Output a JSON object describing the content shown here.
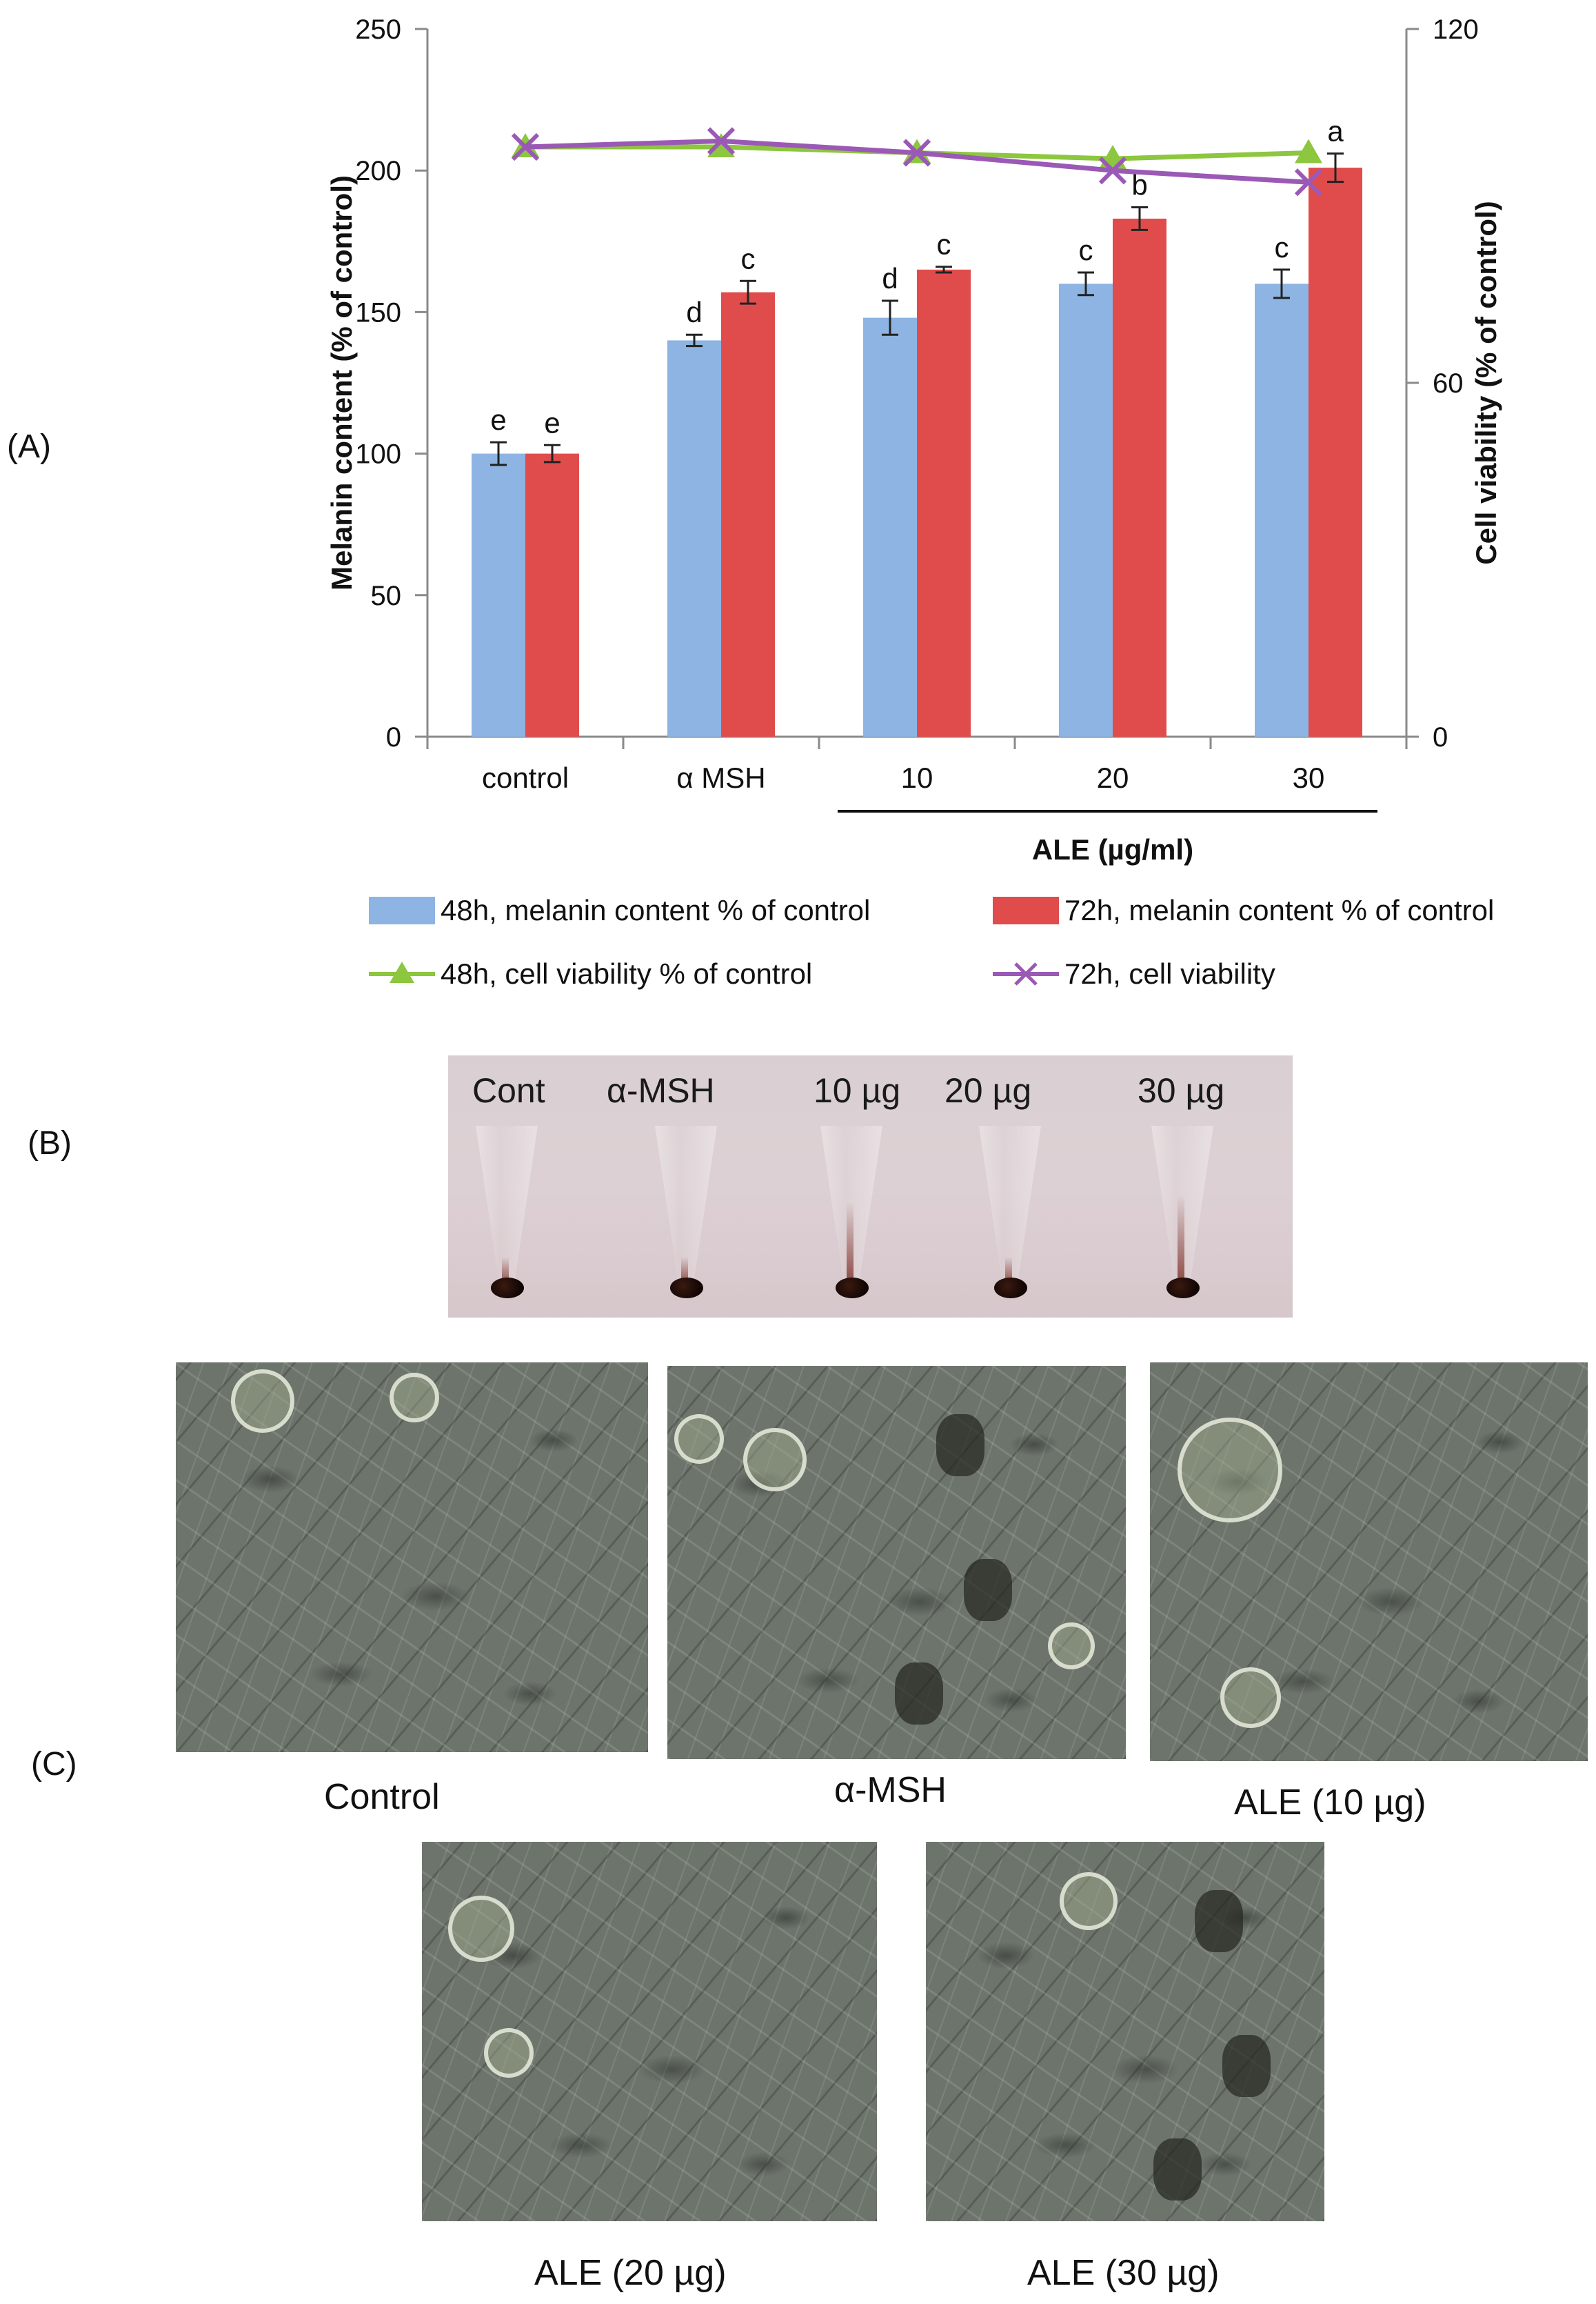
{
  "panels": {
    "a": "(A)",
    "b": "(B)",
    "c": "(C)"
  },
  "chart_data": {
    "type": "bar",
    "categories": [
      "control",
      "α MSH",
      "10",
      "20",
      "30"
    ],
    "group_label": "ALE (µg/ml)",
    "ylabel": "Melanin content (% of control)",
    "y2label": "Cell viability (% of control)",
    "ylim": [
      0,
      250
    ],
    "yticks": [
      0,
      50,
      100,
      150,
      200,
      250
    ],
    "y2lim": [
      0,
      120
    ],
    "y2ticks": [
      0,
      60,
      120
    ],
    "legend_position": "bottom",
    "bar_series": [
      {
        "name": "48h, melanin content % of control",
        "color": "#8db4e2",
        "values": [
          100,
          140,
          148,
          160,
          160
        ],
        "errors": [
          4,
          2,
          6,
          4,
          5
        ],
        "letters": [
          "e",
          "d",
          "d",
          "c",
          "c"
        ]
      },
      {
        "name": "72h, melanin content % of control",
        "color": "#e04c4c",
        "values": [
          100,
          157,
          165,
          183,
          201
        ],
        "errors": [
          3,
          4,
          1,
          4,
          5
        ],
        "letters": [
          "e",
          "c",
          "c",
          "b",
          "a"
        ]
      }
    ],
    "line_series": [
      {
        "name": "48h, cell viability % of control",
        "color": "#8dc63f",
        "marker": "triangle",
        "values": [
          100,
          100,
          99,
          98,
          99
        ]
      },
      {
        "name": "72h, cell viability",
        "color": "#9b59b6",
        "marker": "x",
        "values": [
          100,
          101,
          99,
          96,
          94
        ]
      }
    ]
  },
  "tubes": {
    "labels": [
      "Cont",
      "α-MSH",
      "10 µg",
      "20 µg",
      "30 µg"
    ]
  },
  "micrographs": {
    "labels": [
      "Control",
      "α-MSH",
      "ALE (10 µg)",
      "ALE (20 µg)",
      "ALE (30 µg)"
    ]
  }
}
